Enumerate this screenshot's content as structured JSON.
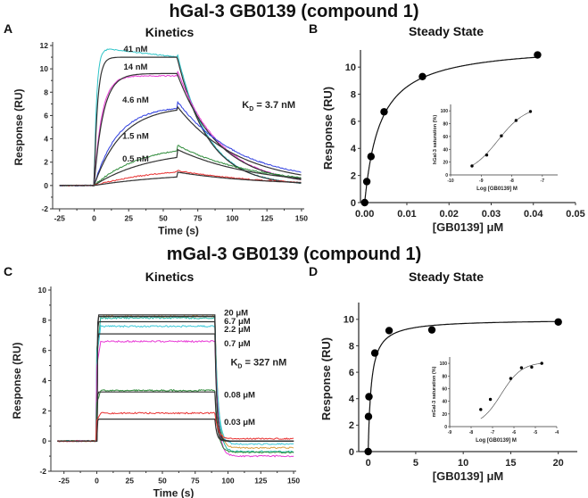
{
  "figure": {
    "row_titles": [
      "hGal-3 GB0139 (compound 1)",
      "mGal-3 GB0139 (compound 1)"
    ]
  },
  "chart_data": [
    {
      "panel": "A",
      "type": "line",
      "title": "Kinetics",
      "xlabel": "Time (s)",
      "ylabel": "Response (RU)",
      "xlim": [
        -30,
        152
      ],
      "ylim": [
        -2,
        12
      ],
      "xticks": [
        -25,
        0,
        25,
        50,
        75,
        100,
        125,
        150
      ],
      "yticks": [
        -2,
        0,
        2,
        4,
        6,
        8,
        10,
        12
      ],
      "annotation": {
        "text_main": "K",
        "text_sub": "D",
        "text_rest": " = 3.7 nM"
      },
      "injection_start": 0,
      "injection_end": 60,
      "series": [
        {
          "name": "41 nM",
          "label": "41 nM",
          "color": "#2ec4c8",
          "fit_color": "#333333",
          "plateau": 11.0,
          "peak_data": 11.7,
          "kon_tau": 2.5,
          "end_value": 0.2
        },
        {
          "name": "14 nM",
          "label": "14 nM",
          "color": "#e83ad6",
          "fit_color": "#333333",
          "plateau": 9.6,
          "peak_data": 9.4,
          "kon_tau": 6.5,
          "end_value": 0.5
        },
        {
          "name": "4.6 nM",
          "label": "4.6 nM",
          "color": "#2f3ee0",
          "fit_color": "#333333",
          "plateau": 6.8,
          "peak_data": 6.8,
          "kon_tau": 20,
          "end_value": 0.9
        },
        {
          "name": "1.5 nM",
          "label": "1.5 nM",
          "color": "#2e8b3a",
          "fit_color": "#333333",
          "plateau": 3.1,
          "peak_data": 3.6,
          "kon_tau": 40,
          "end_value": 0.6
        },
        {
          "name": "0.5 nM",
          "label": "0.5 nM",
          "color": "#e83030",
          "fit_color": "#333333",
          "plateau": 1.15,
          "peak_data": 1.7,
          "kon_tau": 60,
          "end_value": 0.25
        }
      ]
    },
    {
      "panel": "B",
      "type": "scatter",
      "title": "Steady State",
      "xlabel": "[GB0139] μM",
      "ylabel": "Response (RU)",
      "xlim": [
        -0.001,
        0.05
      ],
      "ylim": [
        0,
        11
      ],
      "xticks": [
        0.0,
        0.01,
        0.02,
        0.03,
        0.04,
        0.05
      ],
      "xtick_labels": [
        "0.00",
        "0.01",
        "0.02",
        "0.03",
        "0.04",
        "0.05"
      ],
      "yticks": [
        0,
        2,
        4,
        6,
        8,
        10
      ],
      "x": [
        0,
        0.0005,
        0.0015,
        0.0046,
        0.0137,
        0.041
      ],
      "y": [
        0,
        1.55,
        3.4,
        6.7,
        9.3,
        10.9
      ],
      "fit": {
        "model": "one-site",
        "Rmax": 11.7,
        "KD": 0.0037
      },
      "inset": {
        "type": "scatter",
        "xlabel": "Log [GB0139] M",
        "ylabel": "hGal-3 saturation (%)",
        "xlim": [
          -10,
          -6.5
        ],
        "ylim": [
          0,
          110
        ],
        "xticks": [
          -10,
          -9,
          -8,
          -7
        ],
        "yticks": [
          0,
          20,
          40,
          60,
          80,
          100
        ],
        "x": [
          -9.3,
          -8.82,
          -8.34,
          -7.86,
          -7.39
        ],
        "y": [
          14,
          31,
          61,
          85,
          99
        ],
        "fit": {
          "model": "sigmoid",
          "logEC50": -8.45,
          "hill": 0.95,
          "top": 108,
          "bottom": 0
        }
      }
    },
    {
      "panel": "C",
      "type": "line",
      "title": "Kinetics",
      "xlabel": "Time (s)",
      "ylabel": "Response (RU)",
      "xlim": [
        -35,
        152
      ],
      "ylim": [
        -2,
        10
      ],
      "xticks": [
        -25,
        0,
        25,
        50,
        75,
        100,
        125,
        150
      ],
      "yticks": [
        -2,
        0,
        2,
        4,
        6,
        8,
        10
      ],
      "annotation": {
        "text_main": "K",
        "text_sub": "D",
        "text_rest": " = 327 nM"
      },
      "injection_start": 0,
      "injection_end": 90,
      "series": [
        {
          "name": "20 μM",
          "label": "20 μM",
          "color": "#d9a040",
          "fit_color": "#333333",
          "plateau": 8.35,
          "data_level": 8.25,
          "end_value": -0.45
        },
        {
          "name": "6.7 μM",
          "label": "6.7 μM",
          "color": "#1fb8a8",
          "fit_color": "#333333",
          "plateau": 8.25,
          "data_level": 8.15,
          "end_value": -0.7
        },
        {
          "name": "2.2 μM",
          "label": "2.2 μM",
          "color": "#3cc8d8",
          "fit_color": "#333333",
          "plateau": 7.9,
          "data_level": 7.6,
          "end_value": -0.2
        },
        {
          "name": "0.7 μM",
          "label": "0.7 μM",
          "color": "#e83ad6",
          "fit_color": "#333333",
          "plateau": 7.1,
          "data_level": 6.6,
          "end_value": -1.0
        },
        {
          "name": "0.08 μM",
          "label": "0.08 μM",
          "color": "#2e8b3a",
          "fit_color": "#333333",
          "plateau": 3.25,
          "data_level": 3.35,
          "end_value": -0.75
        },
        {
          "name": "0.03 μM",
          "label": "0.03 μM",
          "color": "#e83030",
          "fit_color": "#333333",
          "plateau": 1.45,
          "data_level": 1.85,
          "end_value": 0.15
        }
      ]
    },
    {
      "panel": "D",
      "type": "scatter",
      "title": "Steady State",
      "xlabel": "[GB0139] μM",
      "ylabel": "Response (RU)",
      "xlim": [
        -1,
        22
      ],
      "ylim": [
        0,
        11
      ],
      "xticks": [
        0,
        5,
        10,
        15,
        20
      ],
      "xtick_labels": [
        "0",
        "5",
        "10",
        "15",
        "20"
      ],
      "yticks": [
        0,
        2,
        4,
        6,
        8,
        10
      ],
      "x": [
        0,
        0.03,
        0.08,
        0.7,
        2.2,
        6.7,
        20
      ],
      "y": [
        0,
        2.65,
        4.15,
        7.45,
        9.15,
        9.2,
        9.8
      ],
      "fit": {
        "model": "one-site",
        "Rmax": 10.0,
        "KD": 0.327
      },
      "inset": {
        "type": "scatter",
        "xlabel": "Log [GB0139] M",
        "ylabel": "mGal-3 saturation (%)",
        "xlim": [
          -9,
          -4
        ],
        "ylim": [
          0,
          110
        ],
        "xticks": [
          -9,
          -8,
          -7,
          -6,
          -5,
          -4
        ],
        "yticks": [
          0,
          20,
          40,
          60,
          80,
          100
        ],
        "x": [
          -7.55,
          -7.1,
          -6.15,
          -5.65,
          -5.17,
          -4.7
        ],
        "y": [
          27,
          43,
          76,
          93,
          94,
          100
        ],
        "fit": {
          "model": "sigmoid",
          "logEC50": -6.6,
          "hill": 0.9,
          "top": 102,
          "bottom": 0
        }
      }
    }
  ]
}
